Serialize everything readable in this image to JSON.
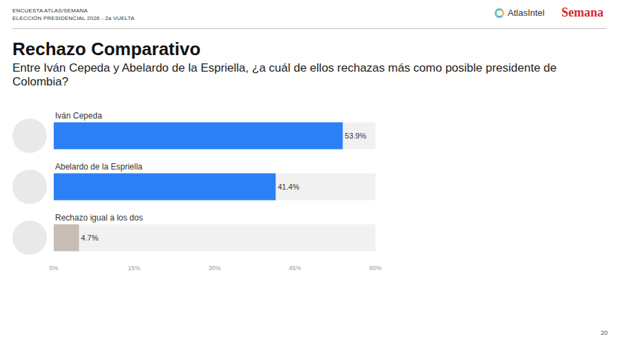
{
  "header": {
    "survey": "ENCUESTA ATLAS/SEMANA",
    "election": "ELECCIÓN PRESIDENCIAL 2026 - 2a VUELTA",
    "logos": [
      "AtlasIntel",
      "Semana"
    ]
  },
  "page_number": "20",
  "chart_data": {
    "type": "bar",
    "orientation": "horizontal",
    "title": "Rechazo Comparativo",
    "subtitle": "Entre Iván Cepeda y Abelardo de la Espriella, ¿a cuál de ellos rechazas más como posible presidente de Colombia?",
    "categories": [
      "Iván Cepeda",
      "Abelardo de la Espriella",
      "Rechazo igual a los dos"
    ],
    "values": [
      53.9,
      41.4,
      4.7
    ],
    "value_labels": [
      "53.9%",
      "41.4%",
      "4.7%"
    ],
    "colors": [
      "#2b80f6",
      "#2b80f6",
      "#c8bdb4"
    ],
    "xlim": [
      0,
      60
    ],
    "xticks": [
      {
        "value": 0,
        "label": "0%"
      },
      {
        "value": 15,
        "label": "15%"
      },
      {
        "value": 30,
        "label": "30%"
      },
      {
        "value": 45,
        "label": "45%"
      },
      {
        "value": 60,
        "label": "60%"
      }
    ],
    "grid": false,
    "data_labels": true,
    "tick_labels": "x"
  }
}
